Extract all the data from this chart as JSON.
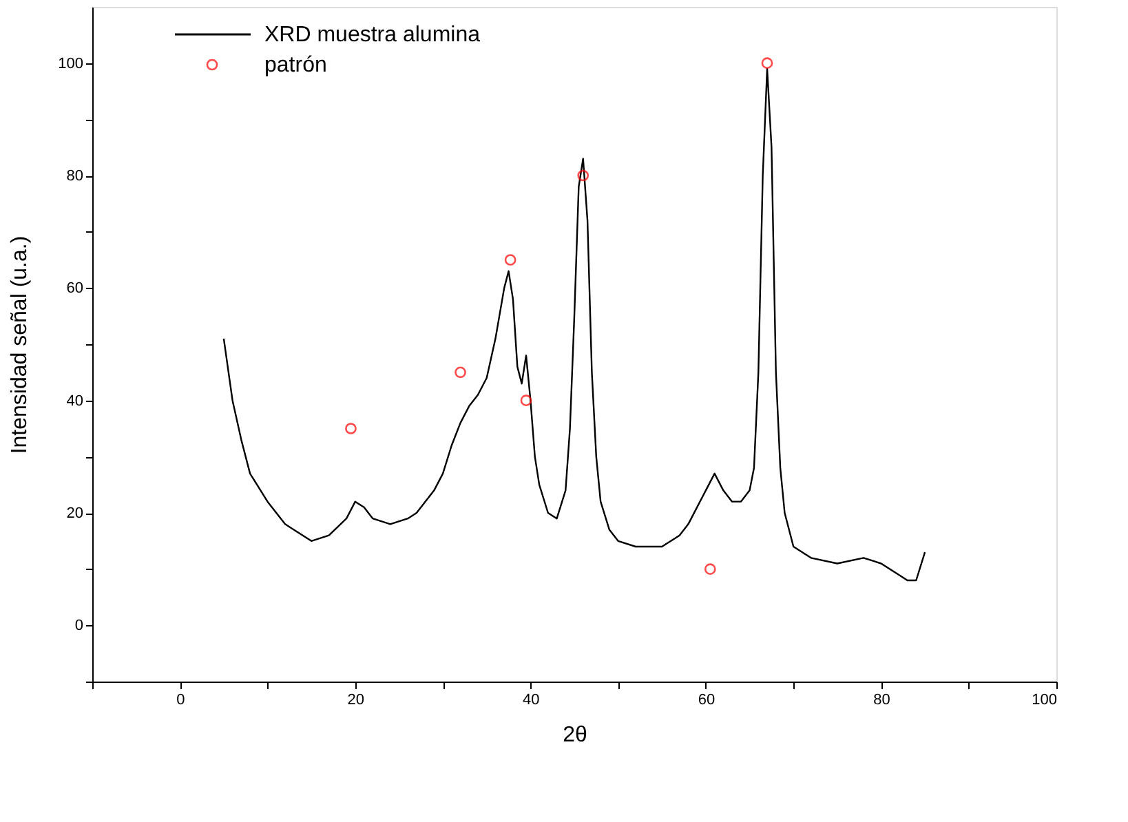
{
  "chart_data": {
    "type": "line",
    "xlabel": "2θ",
    "ylabel": "Intensidad señal (u.a.)",
    "xlim": [
      -10,
      100
    ],
    "ylim": [
      -10,
      110
    ],
    "xticks": [
      {
        "value": -10,
        "label": null
      },
      0,
      {
        "value": 10,
        "label": null
      },
      20,
      {
        "value": 30,
        "label": null
      },
      40,
      {
        "value": 50,
        "label": null
      },
      60,
      {
        "value": 70,
        "label": null
      },
      80,
      {
        "value": 90,
        "label": null
      },
      100
    ],
    "yticks": [
      {
        "value": -10,
        "label": null
      },
      0,
      {
        "value": 10,
        "label": null
      },
      20,
      {
        "value": 30,
        "label": null
      },
      40,
      {
        "value": 50,
        "label": null
      },
      60,
      {
        "value": 70,
        "label": null
      },
      80,
      {
        "value": 90,
        "label": null
      },
      100
    ],
    "grid": false,
    "legend": "top left",
    "series": [
      {
        "name": "XRD muestra alumina",
        "color": "#000000",
        "marker": "none",
        "line_style": "solid",
        "x": [
          5,
          6,
          7,
          8,
          10,
          12,
          13,
          15,
          17,
          19,
          20,
          21,
          22,
          24,
          26,
          27,
          29,
          30,
          31,
          32,
          33,
          34,
          35,
          36,
          37,
          37.5,
          38,
          38.5,
          39,
          39.5,
          40,
          40.5,
          41,
          42,
          43,
          44,
          44.5,
          45,
          45.5,
          46,
          46.5,
          47,
          47.5,
          48,
          49,
          50,
          52,
          55,
          57,
          58,
          59,
          60,
          61,
          62,
          63,
          64,
          65,
          65.5,
          66,
          66.5,
          67,
          67.5,
          68,
          68.5,
          69,
          70,
          72,
          75,
          78,
          80,
          82,
          83,
          84,
          85
        ],
        "values": [
          51,
          40,
          33,
          27,
          22,
          18,
          17,
          15,
          16,
          19,
          22,
          21,
          19,
          18,
          19,
          20,
          24,
          27,
          32,
          36,
          39,
          41,
          44,
          51,
          60,
          63,
          58,
          46,
          43,
          48,
          40,
          30,
          25,
          20,
          19,
          24,
          35,
          55,
          78,
          83,
          72,
          45,
          30,
          22,
          17,
          15,
          14,
          14,
          16,
          18,
          21,
          24,
          27,
          24,
          22,
          22,
          24,
          28,
          45,
          80,
          99,
          85,
          45,
          28,
          20,
          14,
          12,
          11,
          12,
          11,
          9,
          8,
          8,
          13
        ]
      },
      {
        "name": "patrón",
        "type": "scatter",
        "color": "#ff0000",
        "marker": "circle",
        "x": [
          19.5,
          32,
          37.7,
          39.5,
          46,
          60.5,
          67
        ],
        "values": [
          35,
          45,
          65,
          40,
          80,
          10,
          100
        ]
      }
    ]
  }
}
